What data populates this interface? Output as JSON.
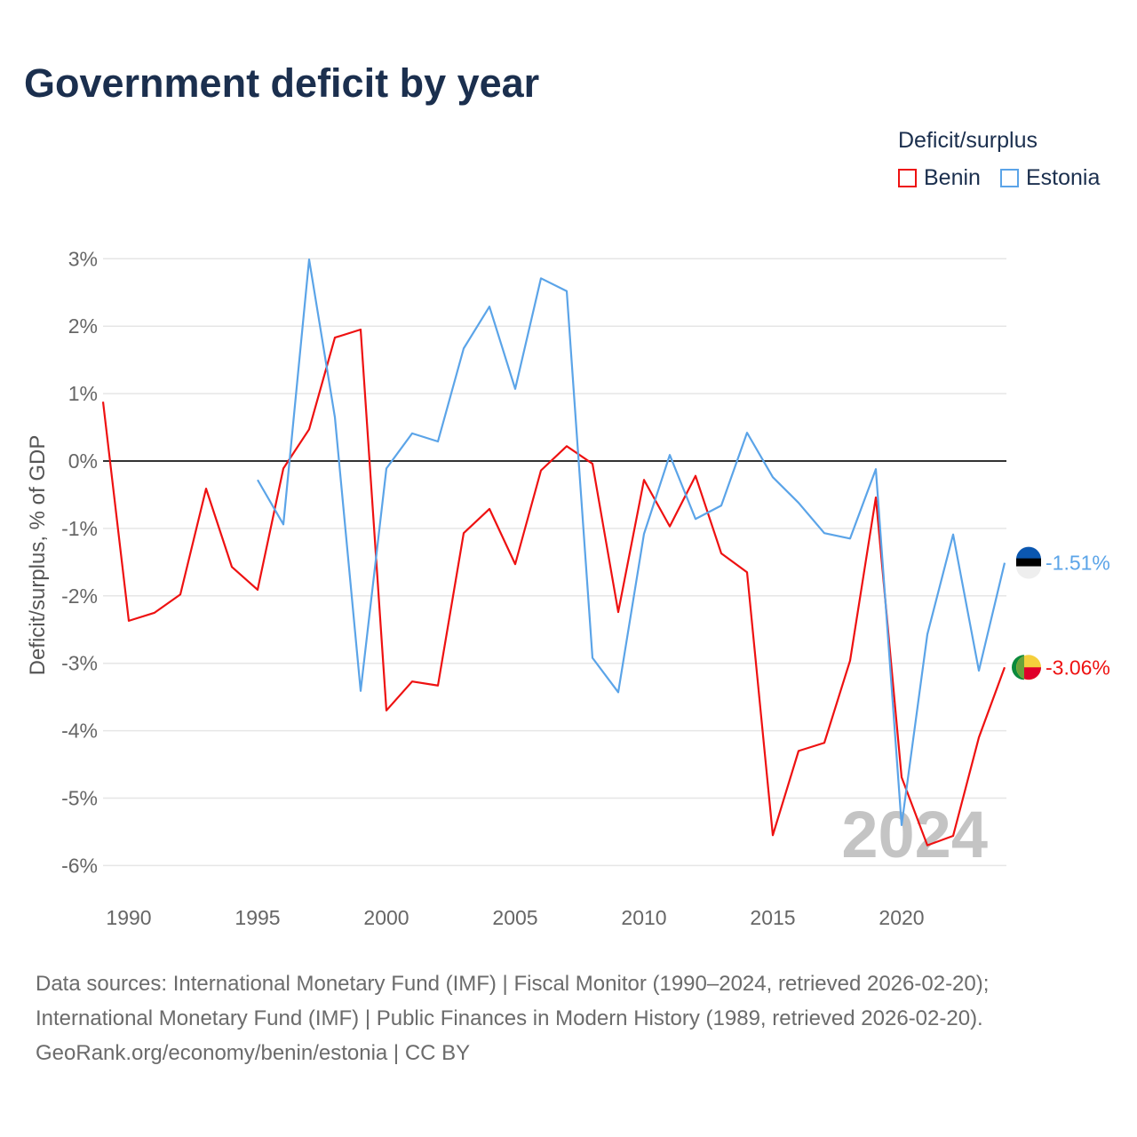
{
  "title": "Government deficit by year",
  "legend": {
    "title": "Deficit/surplus",
    "items": [
      {
        "name": "Benin",
        "color": "#ee1111"
      },
      {
        "name": "Estonia",
        "color": "#5ba4e8"
      }
    ]
  },
  "watermark_year": "2024",
  "end_labels": {
    "Benin": "-3.06%",
    "Estonia": "-1.51%"
  },
  "footer": {
    "line1": "Data sources: International Monetary Fund (IMF) | Fiscal Monitor (1990–2024, retrieved 2026-02-20);",
    "line2": "International Monetary Fund (IMF) | Public Finances in Modern History (1989, retrieved 2026-02-20).",
    "line3": "GeoRank.org/economy/benin/estonia | CC BY"
  },
  "chart_data": {
    "type": "line",
    "title": "Government deficit by year",
    "xlabel": "",
    "ylabel": "Deficit/surplus, % of GDP",
    "xlim": [
      1989,
      2024
    ],
    "ylim": [
      -6,
      3
    ],
    "x_ticks": [
      1990,
      1995,
      2000,
      2005,
      2010,
      2015,
      2020
    ],
    "y_ticks": [
      3,
      2,
      1,
      0,
      -1,
      -2,
      -3,
      -4,
      -5,
      -6
    ],
    "y_tick_labels": [
      "3%",
      "2%",
      "1%",
      "0%",
      "-1%",
      "-2%",
      "-3%",
      "-4%",
      "-5%",
      "-6%"
    ],
    "grid": true,
    "legend_position": "top-right",
    "series": [
      {
        "name": "Benin",
        "color": "#ee1111",
        "start": 1989,
        "values": [
          0.88,
          -2.37,
          -2.25,
          -1.98,
          -0.41,
          -1.57,
          -1.91,
          -0.11,
          0.47,
          1.83,
          1.95,
          -3.7,
          -3.27,
          -3.33,
          -1.07,
          -0.71,
          -1.53,
          -0.14,
          0.22,
          -0.04,
          -2.24,
          -0.28,
          -0.97,
          -0.22,
          -1.37,
          -1.65,
          -5.55,
          -4.3,
          -4.18,
          -2.96,
          -0.54,
          -4.69,
          -5.7,
          -5.56,
          -4.1,
          -3.06
        ]
      },
      {
        "name": "Estonia",
        "color": "#5ba4e8",
        "start": 1995,
        "values": [
          -0.28,
          -0.94,
          2.99,
          0.65,
          -3.41,
          -0.11,
          0.41,
          0.29,
          1.67,
          2.29,
          1.07,
          2.71,
          2.52,
          -2.92,
          -3.43,
          -1.08,
          0.09,
          -0.86,
          -0.66,
          0.42,
          -0.24,
          -0.62,
          -1.07,
          -1.15,
          -0.12,
          -5.4,
          -2.57,
          -1.09,
          -3.11,
          -1.51
        ]
      }
    ]
  }
}
